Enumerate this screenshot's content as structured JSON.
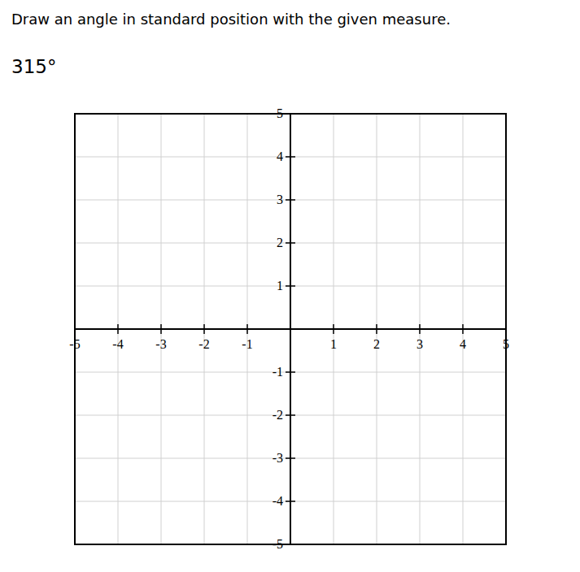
{
  "chart_data": {
    "type": "coordinate_plane",
    "title": "Draw an angle in standard position with the given measure.",
    "annotation": "315°",
    "xlim": [
      -5,
      5
    ],
    "ylim": [
      -5,
      5
    ],
    "xticks": [
      -5,
      -4,
      -3,
      -2,
      -1,
      1,
      2,
      3,
      4,
      5
    ],
    "yticks": [
      -5,
      -4,
      -3,
      -2,
      -1,
      1,
      2,
      3,
      4,
      5
    ],
    "grid": true
  }
}
